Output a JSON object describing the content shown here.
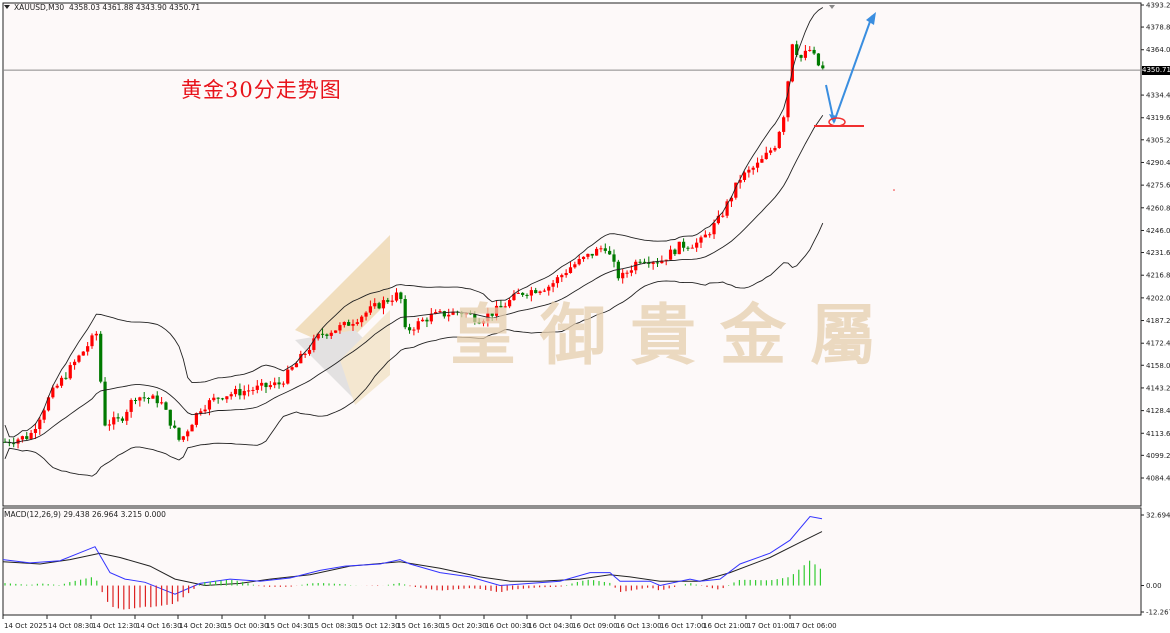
{
  "header": {
    "symbol_timeframe": "XAUUSD,M30",
    "ohlc": "4358.03 4361.88 4343.90 4350.71"
  },
  "annotation_title": "黄金30分走势图",
  "watermark": "皇御貴金屬",
  "current_price": "4350.71",
  "macd": {
    "label": "MACD(12,26,9) 29.438 26.964 3.215 0.000",
    "axis_top": "32.694",
    "axis_zero": "0.00",
    "axis_bottom": "-12.267"
  },
  "colors": {
    "bull": "#ff0000",
    "bear": "#007a00",
    "band": "#222222",
    "macd_line": "#3333ff",
    "signal_line": "#222222",
    "hist_pos": "#33cc33",
    "hist_neg": "#dd2222",
    "arrow": "#3a8ee0",
    "support": "#f03030"
  },
  "chart_data": {
    "type": "candlestick",
    "title": "XAUUSD,M30",
    "annotation": "黄金30分走势图",
    "y_ticks": [
      "4393.20",
      "4378.80",
      "4364.00",
      "4350.71",
      "4334.40",
      "4319.60",
      "4305.20",
      "4290.40",
      "4275.60",
      "4260.80",
      "4246.00",
      "4231.60",
      "4216.80",
      "4202.00",
      "4187.20",
      "4172.40",
      "4158.00",
      "4143.20",
      "4128.40",
      "4113.60",
      "4099.20",
      "4084.40"
    ],
    "x_ticks": [
      "14 Oct 2025",
      "14 Oct 08:30",
      "14 Oct 12:30",
      "14 Oct 16:30",
      "14 Oct 20:30",
      "15 Oct 00:30",
      "15 Oct 04:30",
      "15 Oct 08:30",
      "15 Oct 12:30",
      "15 Oct 16:30",
      "15 Oct 20:30",
      "16 Oct 00:30",
      "16 Oct 04:30",
      "16 Oct 09:00",
      "16 Oct 13:00",
      "16 Oct 17:00",
      "16 Oct 21:00",
      "17 Oct 01:00",
      "17 Oct 06:00"
    ],
    "ylim": [
      4084.4,
      4393.2
    ],
    "last_close": 4350.71,
    "bollinger_bands": true,
    "trend": "strong uptrend from ~4110 to ~4380, pullback expected toward ~4315 support then continuation higher",
    "support_level": 4315,
    "macd_ylim": [
      -12.267,
      32.694
    ],
    "macd_values": {
      "macd": 29.438,
      "signal": 26.964,
      "histogram": 3.215
    }
  }
}
